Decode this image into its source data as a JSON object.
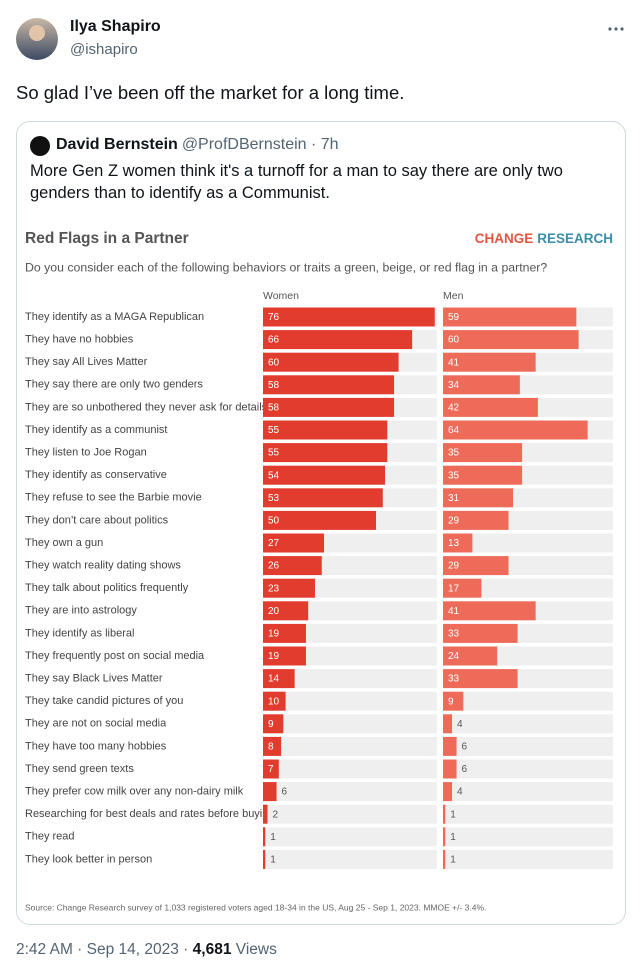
{
  "tweet": {
    "name": "Ilya Shapiro",
    "handle": "@ishapiro",
    "text": "So glad I’ve been off the market for a long time."
  },
  "quoted": {
    "name": "David Bernstein",
    "meta": "@ProfDBernstein · 7h",
    "text": "More Gen Z women think it's a turnoff for a man to say there are only two genders than to identify as a Communist."
  },
  "chart_data": {
    "type": "bar",
    "title": "Red Flags in a Partner",
    "brand": [
      "CHANGE",
      "RESEARCH"
    ],
    "subtitle": "Do you consider each of the following behaviors or traits a green, beige, or red flag in a partner?",
    "categories": [
      "They identify as a MAGA Republican",
      "They have no hobbies",
      "They say All Lives Matter",
      "They say there are only two genders",
      "They are so unbothered they never ask for details",
      "They identify as a communist",
      "They listen to Joe Rogan",
      "They identify as conservative",
      "They refuse to see the Barbie movie",
      "They don’t care about politics",
      "They own a gun",
      "They watch reality dating shows",
      "They talk about politics frequently",
      "They are into astrology",
      "They identify as liberal",
      "They frequently post on social media",
      "They say Black Lives Matter",
      "They take candid pictures of you",
      "They are not on social media",
      "They have too many hobbies",
      "They send green texts",
      "They prefer cow milk over any non-dairy milk",
      "Researching for best deals and rates before buying",
      "They read",
      "They look better in person"
    ],
    "series": [
      {
        "name": "Women",
        "color": "#e23c2e",
        "values": [
          76,
          66,
          60,
          58,
          58,
          55,
          55,
          54,
          53,
          50,
          27,
          26,
          23,
          20,
          19,
          19,
          14,
          10,
          9,
          8,
          7,
          6,
          2,
          1,
          1
        ]
      },
      {
        "name": "Men",
        "color": "#ef6b59",
        "values": [
          59,
          60,
          41,
          34,
          42,
          64,
          35,
          35,
          31,
          29,
          13,
          29,
          17,
          41,
          33,
          24,
          33,
          9,
          4,
          6,
          6,
          4,
          1,
          1,
          1
        ]
      }
    ],
    "source": "Source: Change Research survey of 1,033 registered voters aged 18-34 in the US, Aug 25 - Sep 1, 2023. MMOE +/- 3.4%."
  },
  "footer": {
    "timestamp": "2:42 AM · Sep 14, 2023 ·",
    "views_count": "4,681",
    "views_label": "Views"
  }
}
